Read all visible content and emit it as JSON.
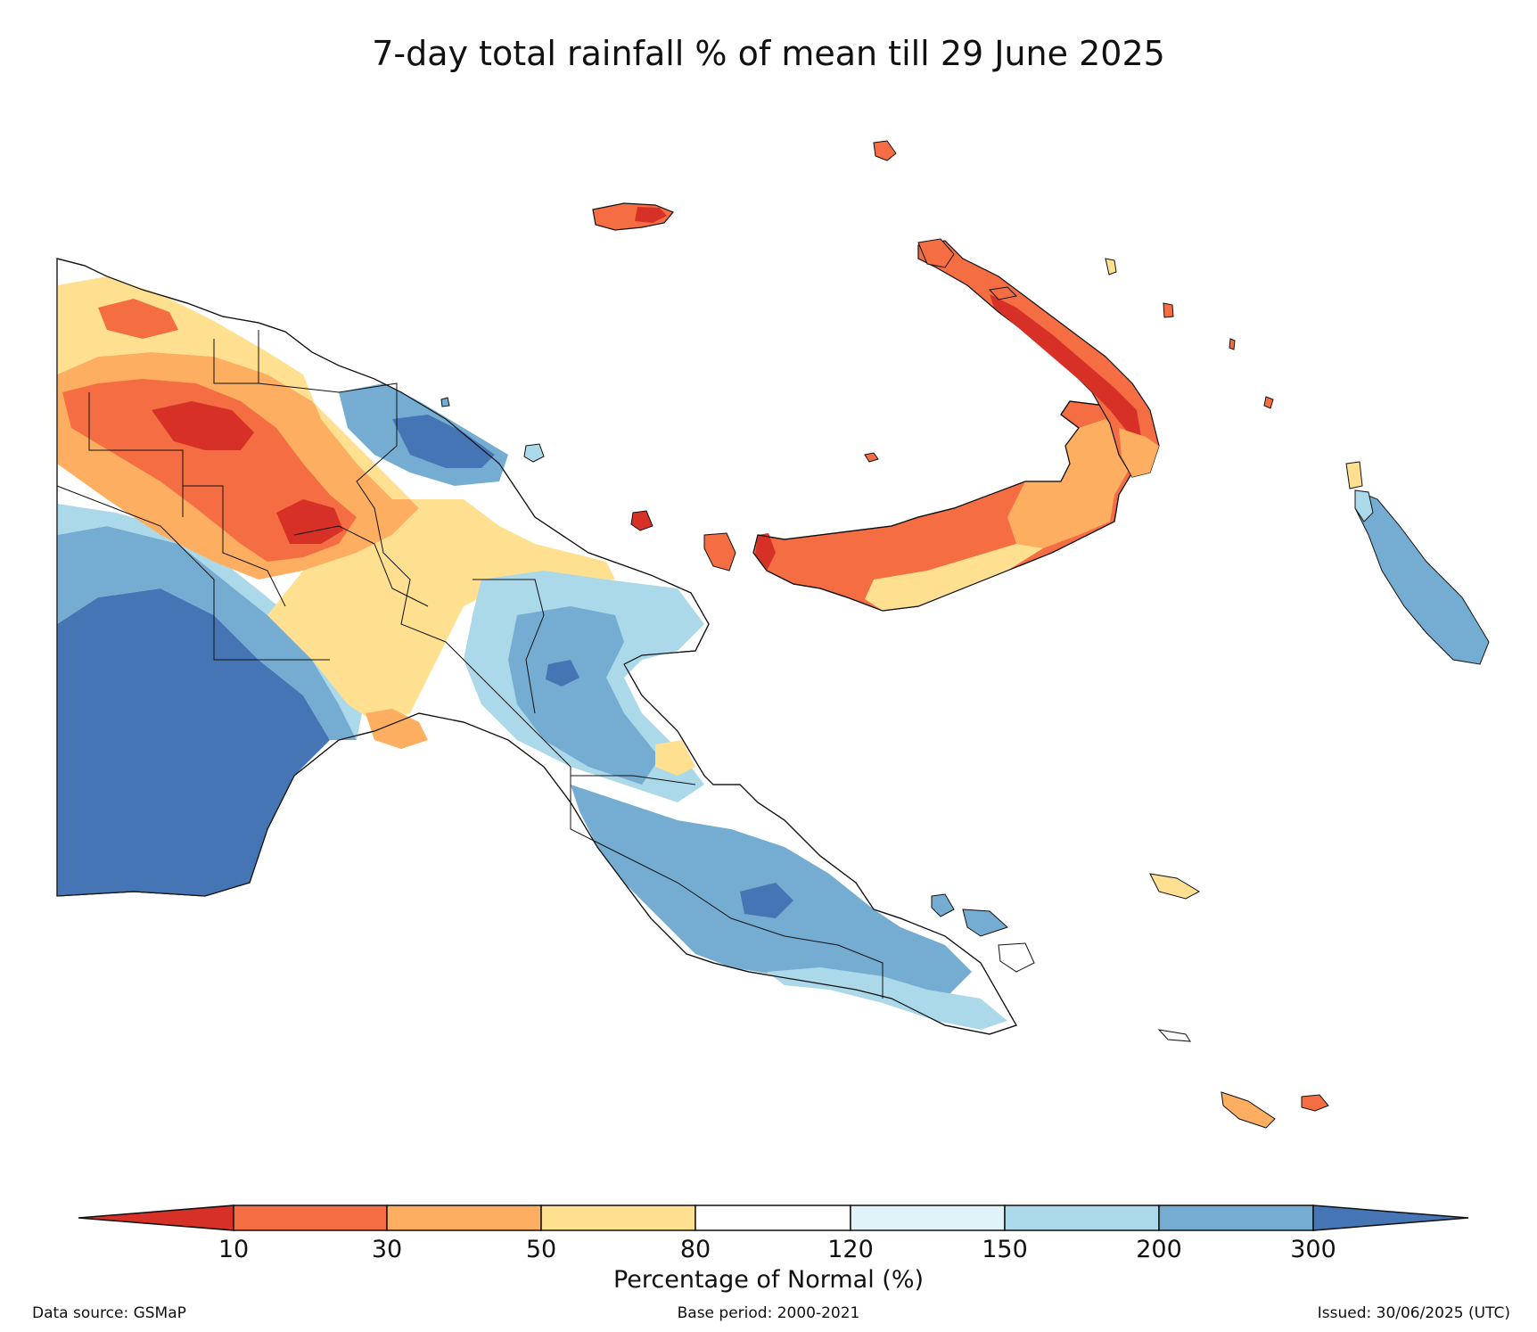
{
  "title": "7-day total rainfall % of mean till 29 June 2025",
  "colorbar": {
    "title": "Percentage of Normal (%)",
    "ticks": [
      "10",
      "30",
      "50",
      "80",
      "120",
      "150",
      "200",
      "300"
    ],
    "colors": {
      "lt10": "#d73027",
      "c10_30": "#f46d43",
      "c30_50": "#fdae61",
      "c50_80": "#fee090",
      "c80_120": "#ffffff",
      "c120_150": "#e0f3f8",
      "c150_200": "#abd9e9",
      "c200_300": "#74add1",
      "gt300": "#4575b4"
    }
  },
  "footer": {
    "source": "Data source: GSMaP",
    "base_period": "Base period: 2000-2021",
    "issued": "Issued: 30/06/2025 (UTC)"
  }
}
